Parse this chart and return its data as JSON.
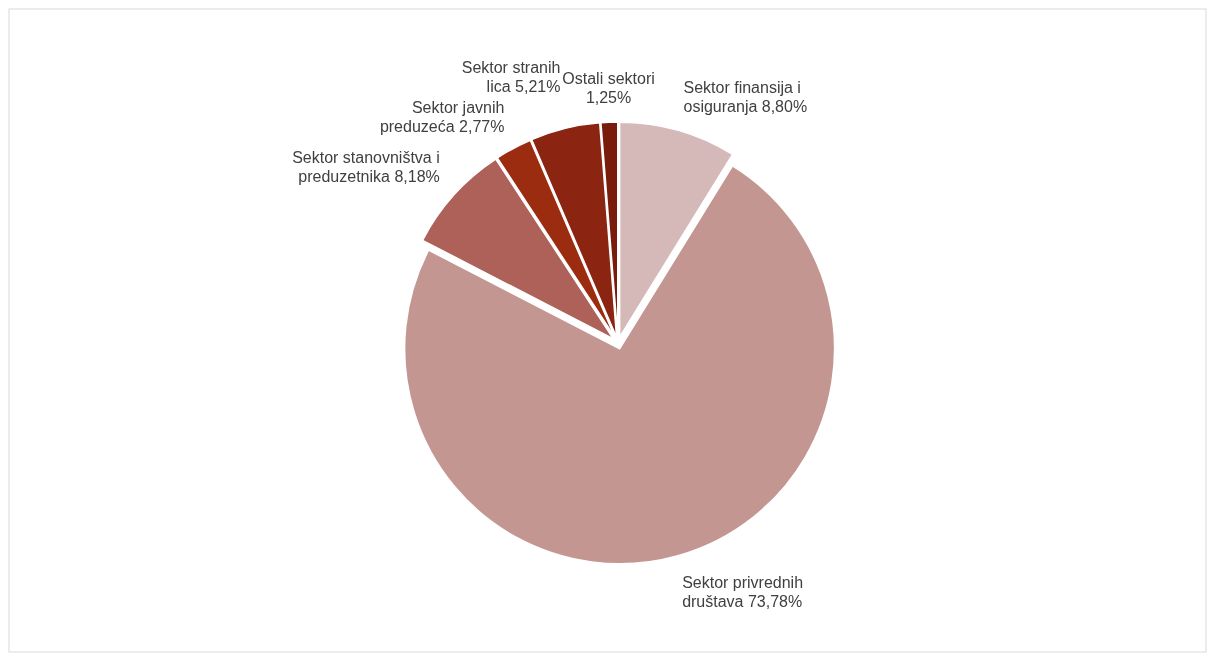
{
  "chart_data": {
    "type": "pie",
    "categories": [
      "Sektor finansija i osiguranja",
      "Sektor privrednih društava",
      "Sektor stanovništva i preduzetnika",
      "Sektor javnih preduzeća",
      "Sektor stranih lica",
      "Ostali sektori"
    ],
    "values": [
      8.8,
      73.78,
      8.18,
      2.77,
      5.21,
      1.25
    ],
    "colors": [
      "#d4b9b8",
      "#c39692",
      "#ad6159",
      "#9c2c10",
      "#8b2410",
      "#7a1c0c"
    ],
    "value_labels": [
      "8,80%",
      "73,78%",
      "8,18%",
      "2,77%",
      "5,21%",
      "1,25%"
    ]
  }
}
